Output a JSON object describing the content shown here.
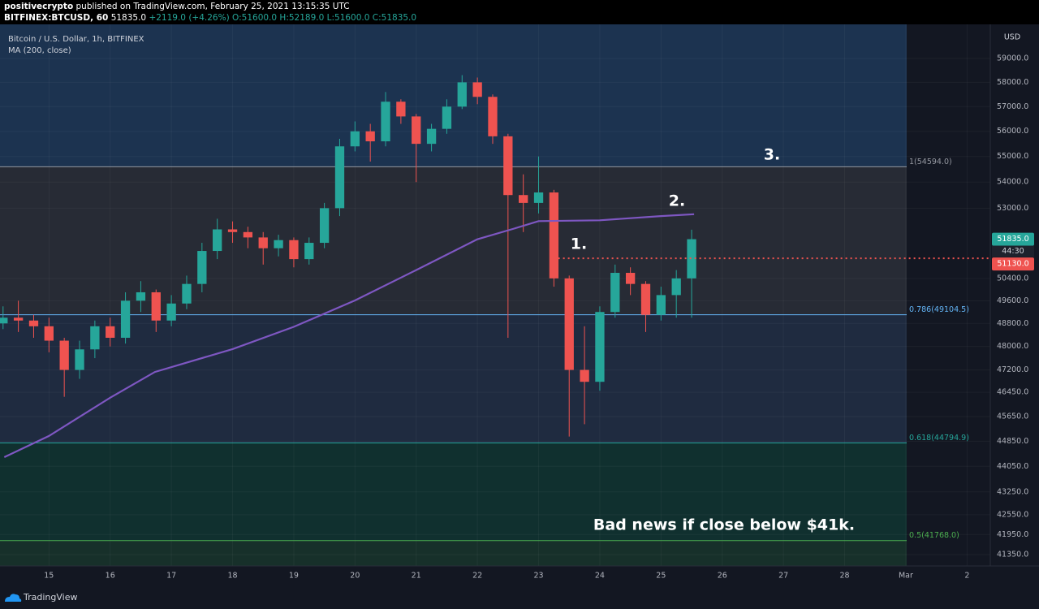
{
  "chart_data": {
    "type": "candlestick",
    "publisher": "positivecrypto",
    "published": "published on TradingView.com, February 25, 2021 13:15:35 UTC",
    "symbol": "BITFINEX:BTCUSD, 60",
    "price": "51835.0",
    "change": "+2119.0 (+4.26%)",
    "ohlc": [
      "O:51600.0",
      "H:52189.0",
      "L:51600.0",
      "C:51835.0"
    ],
    "title": "Bitcoin / U.S. Dollar, 1h, BITFINEX",
    "currency": "USD",
    "footer": "TradingView",
    "log": true,
    "grid": true,
    "up_color": "#26a69a",
    "down_color": "#ef5350",
    "xlim": [
      14.2,
      30.38
    ],
    "xticks": [
      15,
      16,
      17,
      18,
      19,
      20,
      21,
      22,
      23,
      24,
      25,
      26,
      27,
      28,
      {
        "value": 29,
        "label": "Mar"
      },
      {
        "value": 30,
        "label": "2"
      }
    ],
    "ylim": [
      41015,
      60460
    ],
    "yticks": [
      {
        "value": 59000,
        "label": "59000.0"
      },
      {
        "value": 58000,
        "label": "58000.0"
      },
      {
        "value": 57000,
        "label": "57000.0"
      },
      {
        "value": 56000,
        "label": "56000.0"
      },
      {
        "value": 55000,
        "label": "55000.0"
      },
      {
        "value": 54000,
        "label": "54000.0"
      },
      {
        "value": 53000,
        "label": "53000.0"
      },
      {
        "value": 50400,
        "label": "50400.0"
      },
      {
        "value": 49600,
        "label": "49600.0"
      },
      {
        "value": 48800,
        "label": "48800.0"
      },
      {
        "value": 48000,
        "label": "48000.0"
      },
      {
        "value": 47200,
        "label": "47200.0"
      },
      {
        "value": 46450,
        "label": "46450.0"
      },
      {
        "value": 45650,
        "label": "45650.0"
      },
      {
        "value": 44850,
        "label": "44850.0"
      },
      {
        "value": 44050,
        "label": "44050.0"
      },
      {
        "value": 43250,
        "label": "43250.0"
      },
      {
        "value": 42550,
        "label": "42550.0"
      },
      {
        "value": 41950,
        "label": "41950.0"
      },
      {
        "value": 41350,
        "label": "41350.0"
      }
    ],
    "x": [
      14.25,
      14.5,
      14.75,
      15,
      15.25,
      15.5,
      15.75,
      16,
      16.25,
      16.5,
      16.75,
      17,
      17.25,
      17.5,
      17.75,
      18,
      18.25,
      18.5,
      18.75,
      19,
      19.25,
      19.5,
      19.75,
      20,
      20.25,
      20.5,
      20.75,
      21,
      21.25,
      21.5,
      21.75,
      22,
      22.25,
      22.5,
      22.75,
      23,
      23.25,
      23.5,
      23.75,
      24,
      24.25,
      24.5,
      24.75,
      25,
      25.25,
      25.5
    ],
    "open": [
      48800,
      49000,
      48900,
      48700,
      48200,
      47200,
      47900,
      48700,
      48300,
      49600,
      49900,
      48900,
      49500,
      50200,
      51400,
      52200,
      52100,
      51900,
      51500,
      51800,
      51100,
      51700,
      53000,
      55400,
      56000,
      55600,
      57200,
      56600,
      55500,
      56100,
      57000,
      58000,
      57400,
      55800,
      53500,
      53200,
      53600,
      50400,
      47200,
      46800,
      49200,
      50600,
      50200,
      49100,
      49800,
      50400
    ],
    "high": [
      49400,
      49600,
      49100,
      49000,
      48300,
      48200,
      48900,
      49000,
      49900,
      50300,
      50000,
      49800,
      50500,
      51700,
      52600,
      52500,
      52300,
      52100,
      52000,
      51900,
      51900,
      53200,
      55700,
      56400,
      56300,
      57600,
      57300,
      56700,
      56300,
      57300,
      58300,
      58200,
      57500,
      55900,
      54300,
      55000,
      53700,
      50500,
      48700,
      49400,
      50900,
      50800,
      50300,
      50100,
      50700,
      52189
    ],
    "low": [
      48600,
      48500,
      48300,
      47800,
      46300,
      46900,
      47600,
      48000,
      48100,
      49200,
      48500,
      48700,
      49300,
      49900,
      51100,
      51700,
      51500,
      50900,
      51200,
      50800,
      50900,
      51500,
      52700,
      55200,
      54800,
      55400,
      56300,
      54000,
      55200,
      55900,
      56900,
      57100,
      55500,
      48300,
      52100,
      52800,
      50100,
      45000,
      45400,
      46500,
      49000,
      49800,
      48500,
      48900,
      49000,
      49000
    ],
    "close": [
      49000,
      48900,
      48700,
      48200,
      47200,
      47900,
      48700,
      48300,
      49600,
      49900,
      48900,
      49500,
      50200,
      51400,
      52200,
      52100,
      51900,
      51500,
      51800,
      51100,
      51700,
      53000,
      55400,
      56000,
      55600,
      57200,
      56600,
      55500,
      56100,
      57000,
      58000,
      57400,
      55800,
      53500,
      53200,
      53600,
      50400,
      47200,
      46800,
      49200,
      50600,
      50200,
      49100,
      49800,
      50400,
      51835
    ],
    "ma": {
      "name": "MA (200, close)",
      "color": "#7e57c2",
      "x": [
        14.27,
        15,
        16,
        16.73,
        18,
        19,
        20,
        21,
        22,
        22.6,
        23,
        24,
        25,
        25.54
      ],
      "values": [
        44340,
        45020,
        46270,
        47130,
        47910,
        48680,
        49610,
        50700,
        51830,
        52230,
        52510,
        52540,
        52700,
        52770
      ]
    },
    "top_fill": "#1c3350",
    "fib_levels": [
      {
        "value": 54594,
        "label": "1(54594.0)",
        "color": "#9598a1",
        "fill": "#272b35"
      },
      {
        "value": 49104.5,
        "label": "0.786(49104.5)",
        "color": "#64b5f6",
        "fill": "#1f2b40"
      },
      {
        "value": 44794.9,
        "label": "0.618(44794.9)",
        "color": "#26a69a",
        "fill": "#10302f"
      },
      {
        "value": 41768,
        "label": "0.5(41768.0)",
        "color": "#4caf50",
        "fill": "#17302a"
      }
    ],
    "hline": {
      "value": 51130,
      "label": "51130.0",
      "from": 23.24,
      "color": "#ef5350"
    },
    "last_price": {
      "value": 51835,
      "label": "51835.0",
      "color": "#26a69a"
    },
    "countdown": "44:30",
    "annotations": [
      "1.",
      "2.",
      "3.",
      "Bad news if close below $41k."
    ]
  }
}
